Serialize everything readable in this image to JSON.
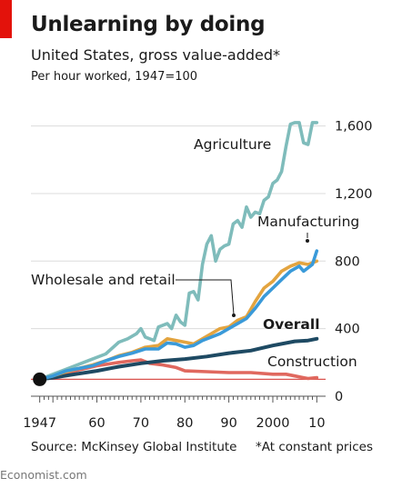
{
  "title": "Unlearning by doing",
  "subtitle": "United States, gross value-added*",
  "unit_note": "Per hour worked, 1947=100",
  "source": "Source: McKinsey Global Institute",
  "footnote": "*At constant prices",
  "brand": "Economist.com",
  "colors": {
    "accent_red": "#e3120b",
    "agriculture": "#7fbcbb",
    "manufacturing": "#3a9ad9",
    "wholesale_and_retail": "#e3a43f",
    "overall": "#1e4a63",
    "construction": "#e0685e",
    "baseline": "#d9534f",
    "grid": "#dcdcdc"
  },
  "chart_data": {
    "type": "line",
    "xlim": [
      1945,
      2012
    ],
    "ylim": [
      0,
      1700
    ],
    "x_ticks": [
      {
        "value": 1947,
        "label": "1947"
      },
      {
        "value": 1960,
        "label": "60"
      },
      {
        "value": 1970,
        "label": "70"
      },
      {
        "value": 1980,
        "label": "80"
      },
      {
        "value": 1990,
        "label": "90"
      },
      {
        "value": 2000,
        "label": "2000"
      },
      {
        "value": 2010,
        "label": "10"
      }
    ],
    "y_ticks": [
      {
        "value": 0,
        "label": "0"
      },
      {
        "value": 400,
        "label": "400"
      },
      {
        "value": 800,
        "label": "800"
      },
      {
        "value": 1200,
        "label": "1,200"
      },
      {
        "value": 1600,
        "label": "1,600"
      }
    ],
    "grid": true,
    "baseline_value": 100,
    "series": [
      {
        "name": "Agriculture",
        "key": "agriculture",
        "x": [
          1947,
          1950,
          1953,
          1956,
          1959,
          1962,
          1965,
          1967,
          1969,
          1970,
          1971,
          1973,
          1974,
          1976,
          1977,
          1978,
          1979,
          1980,
          1981,
          1982,
          1983,
          1984,
          1985,
          1986,
          1987,
          1988,
          1989,
          1990,
          1991,
          1992,
          1993,
          1994,
          1995,
          1996,
          1997,
          1998,
          1999,
          2000,
          2001,
          2002,
          2003,
          2004,
          2005,
          2006,
          2007,
          2008,
          2009,
          2010
        ],
        "y": [
          100,
          130,
          160,
          190,
          220,
          250,
          320,
          340,
          370,
          400,
          350,
          330,
          410,
          430,
          400,
          480,
          440,
          420,
          610,
          620,
          570,
          780,
          900,
          950,
          800,
          870,
          890,
          900,
          1020,
          1040,
          1000,
          1120,
          1060,
          1090,
          1080,
          1160,
          1180,
          1260,
          1280,
          1330,
          1480,
          1610,
          1620,
          1620,
          1500,
          1490,
          1620,
          1620
        ]
      },
      {
        "name": "Manufacturing",
        "key": "manufacturing",
        "x": [
          1947,
          1950,
          1953,
          1956,
          1959,
          1962,
          1965,
          1968,
          1971,
          1974,
          1976,
          1978,
          1980,
          1982,
          1984,
          1986,
          1988,
          1990,
          1992,
          1994,
          1996,
          1998,
          2000,
          2002,
          2004,
          2006,
          2007,
          2008,
          2009,
          2010
        ],
        "y": [
          100,
          120,
          150,
          165,
          180,
          210,
          235,
          255,
          280,
          280,
          315,
          310,
          290,
          300,
          330,
          350,
          370,
          400,
          430,
          460,
          520,
          590,
          640,
          690,
          740,
          770,
          740,
          760,
          780,
          860
        ]
      },
      {
        "name": "Wholesale and retail",
        "key": "wholesale_and_retail",
        "x": [
          1947,
          1950,
          1953,
          1956,
          1959,
          1962,
          1965,
          1968,
          1971,
          1974,
          1976,
          1978,
          1980,
          1982,
          1984,
          1986,
          1988,
          1990,
          1992,
          1994,
          1996,
          1998,
          2000,
          2002,
          2004,
          2006,
          2008,
          2010
        ],
        "y": [
          100,
          120,
          145,
          165,
          185,
          210,
          240,
          260,
          290,
          300,
          340,
          330,
          320,
          310,
          340,
          370,
          400,
          410,
          450,
          470,
          560,
          640,
          680,
          740,
          770,
          790,
          780,
          800
        ]
      },
      {
        "name": "Overall",
        "key": "overall",
        "x": [
          1947,
          1950,
          1955,
          1960,
          1965,
          1970,
          1975,
          1980,
          1985,
          1990,
          1995,
          2000,
          2005,
          2008,
          2010
        ],
        "y": [
          100,
          110,
          130,
          150,
          175,
          195,
          210,
          220,
          235,
          255,
          270,
          300,
          325,
          330,
          340
        ]
      },
      {
        "name": "Construction",
        "key": "construction",
        "x": [
          1947,
          1950,
          1955,
          1960,
          1965,
          1968,
          1970,
          1972,
          1975,
          1978,
          1980,
          1985,
          1990,
          1995,
          2000,
          2003,
          2005,
          2007,
          2008,
          2010
        ],
        "y": [
          100,
          120,
          150,
          180,
          200,
          210,
          215,
          195,
          185,
          170,
          150,
          145,
          140,
          140,
          130,
          130,
          120,
          110,
          105,
          110
        ]
      }
    ],
    "annotations": [
      {
        "text": "Agriculture",
        "series": "agriculture"
      },
      {
        "text": "Manufacturing",
        "series": "manufacturing"
      },
      {
        "text": "Wholesale and retail",
        "series": "wholesale_and_retail"
      },
      {
        "text": "Overall",
        "series": "overall"
      },
      {
        "text": "Construction",
        "series": "construction"
      }
    ]
  }
}
